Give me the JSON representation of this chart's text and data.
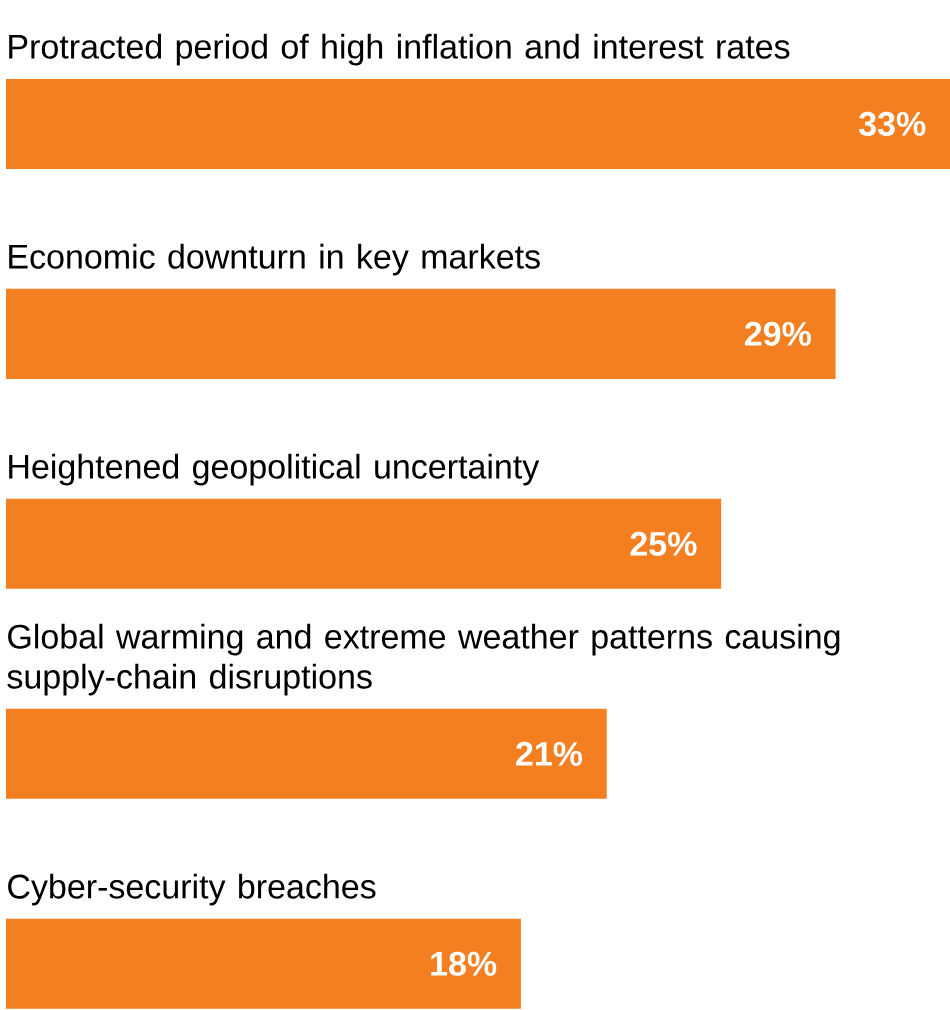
{
  "chart_data": {
    "type": "bar",
    "orientation": "horizontal",
    "categories": [
      "Protracted period of high inflation and interest rates",
      "Economic downturn in key markets",
      "Heightened geopolitical uncertainty",
      "Global warming and extreme weather patterns causing supply-chain disruptions",
      "Cyber-security breaches"
    ],
    "values": [
      33,
      29,
      25,
      21,
      18
    ],
    "value_labels": [
      "33%",
      "29%",
      "25%",
      "21%",
      "18%"
    ],
    "color": "#f47f20",
    "xlim": [
      0,
      33
    ],
    "tick_labels": false
  }
}
